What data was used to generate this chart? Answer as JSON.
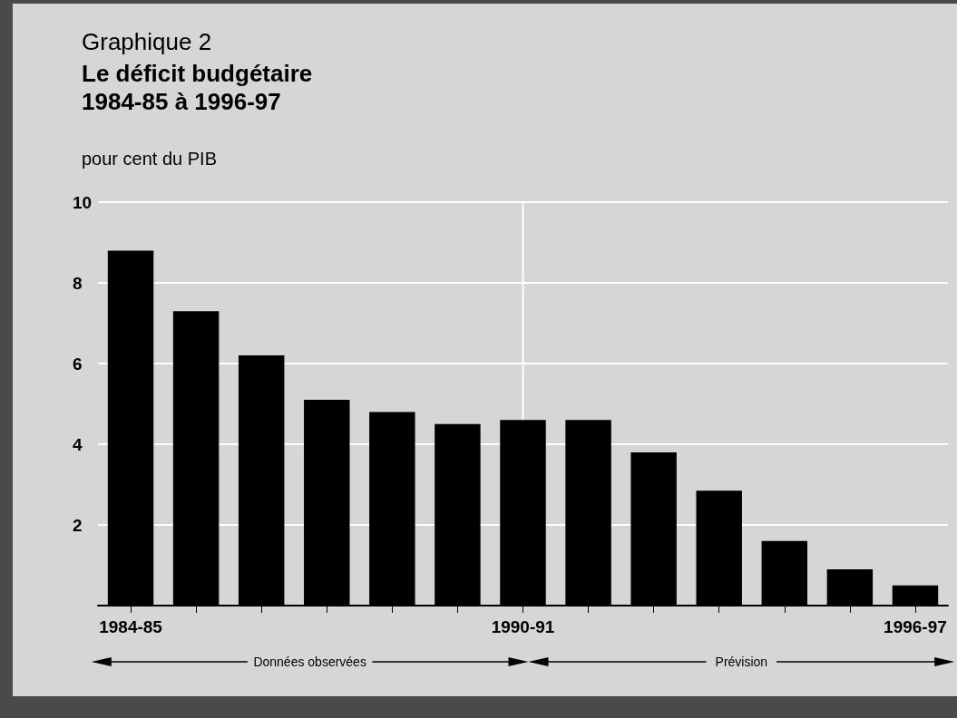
{
  "chart_data": {
    "type": "bar",
    "title": "Graphique 2",
    "subtitle": "Le déficit budgétaire\n1984-85 à 1996-97",
    "ylabel": "pour cent du PIB",
    "categories": [
      "1984-85",
      null,
      null,
      null,
      null,
      null,
      "1990-91",
      null,
      null,
      null,
      null,
      null,
      "1996-97"
    ],
    "values": [
      8.8,
      7.3,
      6.2,
      5.1,
      4.8,
      4.5,
      4.6,
      4.6,
      3.8,
      2.85,
      1.6,
      0.9,
      0.5
    ],
    "color": "#000000",
    "ylim": [
      0,
      10
    ],
    "yticks": [
      {
        "value": 0,
        "label": null
      },
      2,
      4,
      6,
      8,
      10
    ],
    "grid": "y",
    "ref_lines": [
      {
        "axis": "x",
        "value": "1990-91",
        "color": "#ffffff"
      }
    ],
    "annotations": [
      "Données observées",
      "Prévision"
    ]
  }
}
